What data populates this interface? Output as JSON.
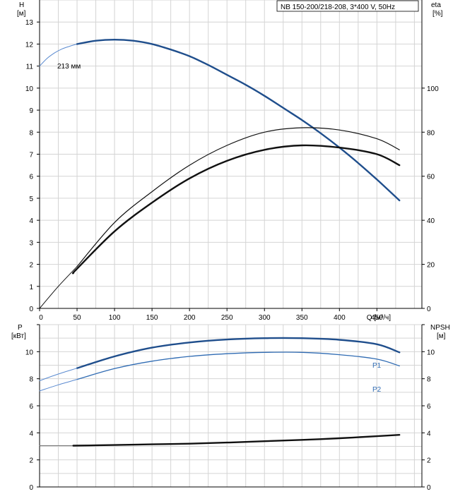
{
  "title_box": "NB 150-200/218-208, 3*400 V, 50Hz",
  "colors": {
    "grid": "#d4d4d4",
    "axis": "#000000",
    "blue_dark": "#1f4e8c",
    "blue_mid": "#2f6bb3",
    "blue_light": "#5a8ad0",
    "black": "#111111",
    "label_blue": "#2f6bb3"
  },
  "chart_data": [
    {
      "type": "line",
      "title": "",
      "xlabel": "Q [м³/ч]",
      "ylabel_left": "H\n[м]",
      "ylabel_right": "eta\n[%]",
      "xlim": [
        0,
        510
      ],
      "x_ticks": [
        0,
        50,
        100,
        150,
        200,
        250,
        300,
        350,
        400,
        450
      ],
      "ylim_left": [
        0,
        14
      ],
      "y_ticks_left": [
        0,
        1,
        2,
        3,
        4,
        5,
        6,
        7,
        8,
        9,
        10,
        11,
        12,
        13
      ],
      "ylim_right": [
        0,
        140
      ],
      "y_ticks_right": [
        0,
        20,
        40,
        60,
        80,
        100
      ],
      "grid": true,
      "annotation": "213 мм",
      "series": [
        {
          "name": "",
          "kind": "head_extension",
          "axis": "left",
          "x": [
            0,
            10,
            20,
            30,
            40,
            50
          ],
          "y": [
            11.0,
            11.35,
            11.6,
            11.78,
            11.9,
            12.0
          ]
        },
        {
          "name": "",
          "kind": "head",
          "axis": "left",
          "x": [
            50,
            75,
            100,
            125,
            150,
            175,
            200,
            225,
            250,
            275,
            300,
            325,
            350,
            375,
            400,
            425,
            450,
            480
          ],
          "y": [
            12.0,
            12.15,
            12.2,
            12.15,
            12.0,
            11.75,
            11.45,
            11.05,
            10.6,
            10.15,
            9.65,
            9.1,
            8.55,
            7.95,
            7.3,
            6.6,
            5.85,
            4.9
          ]
        },
        {
          "name": "",
          "kind": "eta_upper_extension",
          "axis": "right",
          "x": [
            0,
            25,
            50
          ],
          "y": [
            0,
            10,
            19
          ]
        },
        {
          "name": "",
          "kind": "eta_upper",
          "axis": "right",
          "x": [
            50,
            100,
            150,
            200,
            250,
            300,
            350,
            400,
            450,
            480
          ],
          "y": [
            19,
            39,
            53,
            65,
            74,
            80,
            82,
            81,
            77,
            72
          ]
        },
        {
          "name": "",
          "kind": "eta_lower",
          "axis": "right",
          "x": [
            45,
            50,
            100,
            150,
            200,
            250,
            300,
            350,
            400,
            450,
            480
          ],
          "y": [
            16,
            18,
            35,
            48,
            59,
            67,
            72,
            74,
            73,
            70,
            65
          ]
        }
      ]
    },
    {
      "type": "line",
      "title": "",
      "xlabel": "",
      "ylabel_left": "P\n[кВт]",
      "ylabel_right": "NPSH\n[м]",
      "xlim": [
        0,
        510
      ],
      "ylim_left": [
        0,
        12
      ],
      "y_ticks_left": [
        0,
        2,
        4,
        6,
        8,
        10
      ],
      "ylim_right": [
        0,
        12
      ],
      "y_ticks_right": [
        0,
        2,
        4,
        6,
        8,
        10
      ],
      "grid": true,
      "series": [
        {
          "name": "P1",
          "kind": "p1",
          "axis": "left",
          "x": [
            50,
            100,
            150,
            200,
            250,
            300,
            350,
            400,
            450,
            480
          ],
          "y": [
            8.78,
            9.65,
            10.3,
            10.68,
            10.9,
            11.0,
            11.0,
            10.88,
            10.55,
            9.95
          ]
        },
        {
          "name": "",
          "kind": "p1_extension",
          "axis": "left",
          "x": [
            0,
            25,
            50
          ],
          "y": [
            7.85,
            8.35,
            8.78
          ]
        },
        {
          "name": "P2",
          "kind": "p2",
          "axis": "left",
          "x": [
            50,
            100,
            150,
            200,
            250,
            300,
            350,
            400,
            450,
            480
          ],
          "y": [
            7.95,
            8.75,
            9.3,
            9.65,
            9.85,
            9.95,
            9.95,
            9.78,
            9.45,
            8.95
          ]
        },
        {
          "name": "",
          "kind": "p2_extension",
          "axis": "left",
          "x": [
            0,
            25,
            50
          ],
          "y": [
            7.1,
            7.55,
            7.95
          ]
        },
        {
          "name": "",
          "kind": "npsh_extension",
          "axis": "right",
          "x": [
            0,
            45
          ],
          "y": [
            3.05,
            3.05
          ]
        },
        {
          "name": "",
          "kind": "npsh",
          "axis": "right",
          "x": [
            45,
            100,
            150,
            200,
            250,
            300,
            350,
            400,
            450,
            480
          ],
          "y": [
            3.05,
            3.1,
            3.15,
            3.2,
            3.28,
            3.38,
            3.48,
            3.6,
            3.75,
            3.85
          ]
        }
      ]
    }
  ]
}
